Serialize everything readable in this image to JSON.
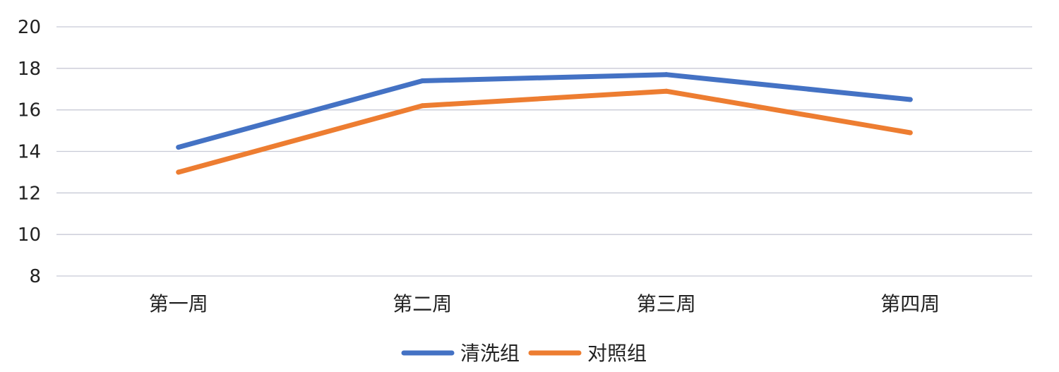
{
  "chart_data": {
    "type": "line",
    "title": "",
    "xlabel": "",
    "ylabel": "",
    "categories": [
      "第一周",
      "第二周",
      "第三周",
      "第四周"
    ],
    "ylim": [
      8,
      20
    ],
    "yticks": [
      8,
      10,
      12,
      14,
      16,
      18,
      20
    ],
    "grid": true,
    "legend_position": "bottom",
    "series": [
      {
        "name": "清洗组",
        "color": "#4472c4",
        "values": [
          14.2,
          17.4,
          17.7,
          16.5
        ]
      },
      {
        "name": "对照组",
        "color": "#ed7d31",
        "values": [
          13.0,
          16.2,
          16.9,
          14.9
        ]
      }
    ]
  }
}
